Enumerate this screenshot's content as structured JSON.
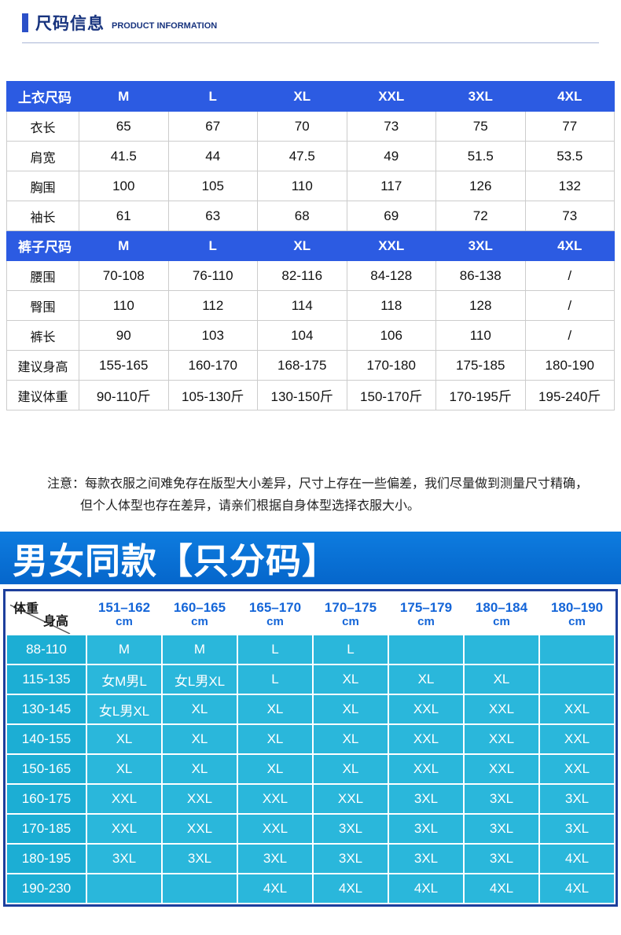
{
  "header": {
    "title_cn": "尺码信息",
    "title_en": "PRODUCT INFORMATION"
  },
  "size_table": {
    "sections": [
      {
        "header": {
          "label": "上衣尺码",
          "cols": [
            "M",
            "L",
            "XL",
            "XXL",
            "3XL",
            "4XL"
          ]
        },
        "rows": [
          {
            "label": "衣长",
            "values": [
              "65",
              "67",
              "70",
              "73",
              "75",
              "77"
            ]
          },
          {
            "label": "肩宽",
            "values": [
              "41.5",
              "44",
              "47.5",
              "49",
              "51.5",
              "53.5"
            ]
          },
          {
            "label": "胸围",
            "values": [
              "100",
              "105",
              "110",
              "117",
              "126",
              "132"
            ]
          },
          {
            "label": "袖长",
            "values": [
              "61",
              "63",
              "68",
              "69",
              "72",
              "73"
            ]
          }
        ]
      },
      {
        "header": {
          "label": "裤子尺码",
          "cols": [
            "M",
            "L",
            "XL",
            "XXL",
            "3XL",
            "4XL"
          ]
        },
        "rows": [
          {
            "label": "腰围",
            "values": [
              "70-108",
              "76-110",
              "82-116",
              "84-128",
              "86-138",
              "/"
            ]
          },
          {
            "label": "臀围",
            "values": [
              "110",
              "112",
              "114",
              "118",
              "128",
              "/"
            ]
          },
          {
            "label": "裤长",
            "values": [
              "90",
              "103",
              "104",
              "106",
              "110",
              "/"
            ]
          },
          {
            "label": "建议身高",
            "values": [
              "155-165",
              "160-170",
              "168-175",
              "170-180",
              "175-185",
              "180-190"
            ]
          },
          {
            "label": "建议体重",
            "values": [
              "90-110斤",
              "105-130斤",
              "130-150斤",
              "150-170斤",
              "170-195斤",
              "195-240斤"
            ]
          }
        ]
      }
    ]
  },
  "note": {
    "line1": "注意：每款衣服之间难免存在版型大小差异，尺寸上存在一些偏差，我们尽量做到测量尺寸精确，",
    "line2": "但个人体型也存在差异，请亲们根据自身体型选择衣服大小。"
  },
  "banner": {
    "title": "男女同款【只分码】"
  },
  "unisex_table": {
    "corner": {
      "top": "体重",
      "bottom": "身高"
    },
    "columns": [
      {
        "range": "151–162",
        "unit": "cm"
      },
      {
        "range": "160–165",
        "unit": "cm"
      },
      {
        "range": "165–170",
        "unit": "cm"
      },
      {
        "range": "170–175",
        "unit": "cm"
      },
      {
        "range": "175–179",
        "unit": "cm"
      },
      {
        "range": "180–184",
        "unit": "cm"
      },
      {
        "range": "180–190",
        "unit": "cm"
      }
    ],
    "rows": [
      {
        "label": "88-110",
        "values": [
          "M",
          "M",
          "L",
          "L",
          "",
          "",
          ""
        ]
      },
      {
        "label": "115-135",
        "values": [
          "女M男L",
          "女L男XL",
          "L",
          "XL",
          "XL",
          "XL",
          ""
        ]
      },
      {
        "label": "130-145",
        "values": [
          "女L男XL",
          "XL",
          "XL",
          "XL",
          "XXL",
          "XXL",
          "XXL"
        ]
      },
      {
        "label": "140-155",
        "values": [
          "XL",
          "XL",
          "XL",
          "XL",
          "XXL",
          "XXL",
          "XXL"
        ]
      },
      {
        "label": "150-165",
        "values": [
          "XL",
          "XL",
          "XL",
          "XL",
          "XXL",
          "XXL",
          "XXL"
        ]
      },
      {
        "label": "160-175",
        "values": [
          "XXL",
          "XXL",
          "XXL",
          "XXL",
          "3XL",
          "3XL",
          "3XL"
        ]
      },
      {
        "label": "170-185",
        "values": [
          "XXL",
          "XXL",
          "XXL",
          "3XL",
          "3XL",
          "3XL",
          "3XL"
        ]
      },
      {
        "label": "180-195",
        "values": [
          "3XL",
          "3XL",
          "3XL",
          "3XL",
          "3XL",
          "3XL",
          "4XL"
        ]
      },
      {
        "label": "190-230",
        "values": [
          "",
          "",
          "4XL",
          "4XL",
          "4XL",
          "4XL",
          "4XL"
        ]
      }
    ]
  },
  "colors": {
    "title_navy": "#17337e",
    "accent_blue": "#2b50c8",
    "size_table_header_blue": "#2c5be2",
    "banner_blue_top": "#0e7cdf",
    "banner_blue_bottom": "#0566cb",
    "header_text_blue": "#1465d8",
    "cell_cyan": "#2ab7db",
    "label_cyan": "#1caed4",
    "unisex_border_blue": "#1d3f9c"
  }
}
